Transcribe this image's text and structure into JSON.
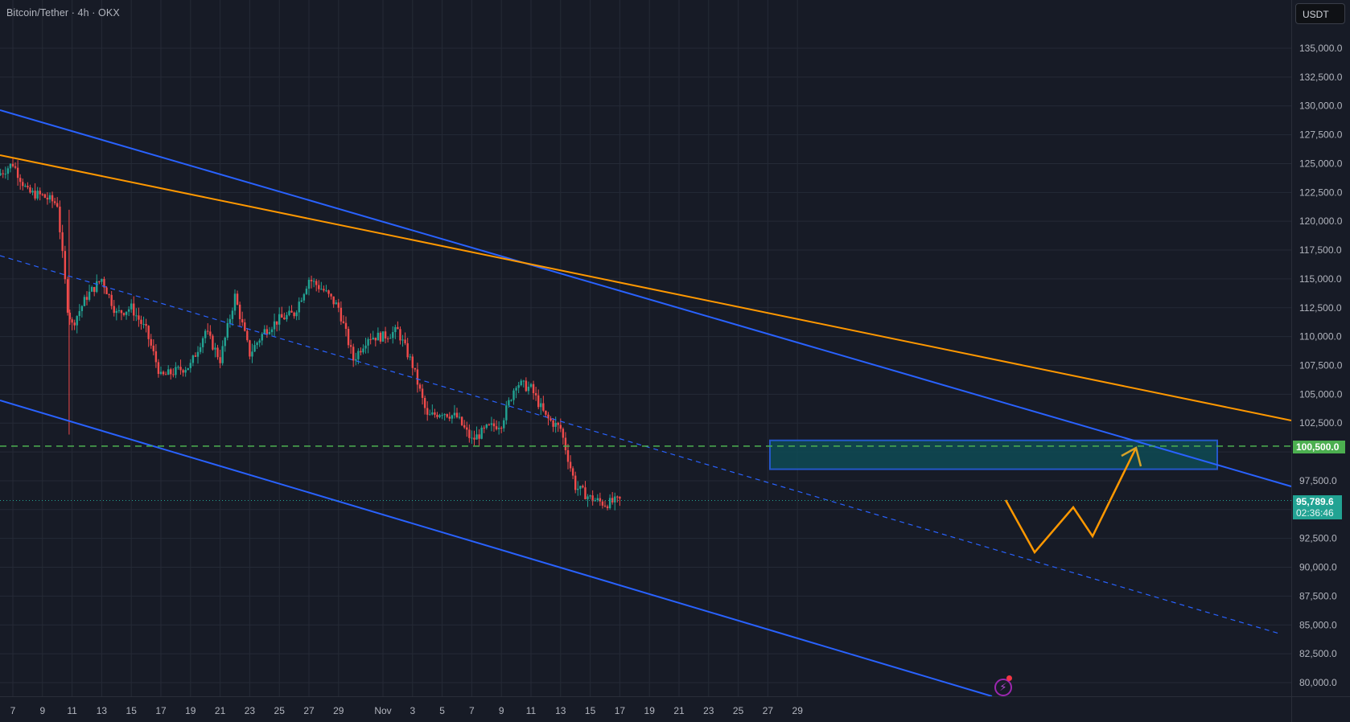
{
  "header": {
    "title": "Bitcoin/Tether · 4h · OKX"
  },
  "price_axis": {
    "currency_button": "USDT",
    "ticks": [
      "135,000.0",
      "132,500.0",
      "130,000.0",
      "127,500.0",
      "125,000.0",
      "122,500.0",
      "120,000.0",
      "117,500.0",
      "115,000.0",
      "112,500.0",
      "110,000.0",
      "107,500.0",
      "105,000.0",
      "102,500.0",
      "97,500.0",
      "92,500.0",
      "90,000.0",
      "87,500.0",
      "85,000.0",
      "82,500.0",
      "80,000.0"
    ],
    "level_badge": "100,500.0",
    "last_price": "95,789.6",
    "countdown": "02:36:46"
  },
  "time_axis": {
    "ticks": [
      "7",
      "9",
      "11",
      "13",
      "15",
      "17",
      "19",
      "21",
      "23",
      "25",
      "27",
      "29",
      "Nov",
      "3",
      "5",
      "7",
      "9",
      "11",
      "13",
      "15",
      "17",
      "19",
      "21",
      "23",
      "25",
      "27",
      "29"
    ]
  },
  "colors": {
    "background": "#171b26",
    "grid": "#252a36",
    "up": "#22a393",
    "down": "#f04b4b",
    "channel": "#2962ff",
    "trendline": "#ff9800",
    "level": "#4caf50",
    "zone_fill": "#0e4a55",
    "last_price": "#22a393"
  },
  "chart_data": {
    "type": "candlestick",
    "title": "Bitcoin/Tether · 4h · OKX",
    "xlabel": "",
    "ylabel": "USDT",
    "ylim": [
      79000,
      137000
    ],
    "x_range": [
      "Oct 6",
      "Nov 29"
    ],
    "grid": true,
    "price_ticks": [
      80000,
      82500,
      85000,
      87500,
      90000,
      92500,
      95000,
      97500,
      100000,
      102500,
      105000,
      107500,
      110000,
      112500,
      115000,
      117500,
      120000,
      122500,
      125000,
      127500,
      130000,
      132500,
      135000
    ],
    "approx_close_path": [
      {
        "date": "Oct 6",
        "price": 124000
      },
      {
        "date": "Oct 7",
        "price": 125000
      },
      {
        "date": "Oct 8",
        "price": 122500
      },
      {
        "date": "Oct 9",
        "price": 122200
      },
      {
        "date": "Oct 10",
        "price": 121500
      },
      {
        "date": "Oct 10 late",
        "price": 112500
      },
      {
        "date": "Oct 11",
        "price": 111000
      },
      {
        "date": "Oct 12",
        "price": 113500
      },
      {
        "date": "Oct 13",
        "price": 115000
      },
      {
        "date": "Oct 14",
        "price": 112000
      },
      {
        "date": "Oct 15",
        "price": 112500
      },
      {
        "date": "Oct 16",
        "price": 110500
      },
      {
        "date": "Oct 17",
        "price": 106500
      },
      {
        "date": "Oct 18",
        "price": 107000
      },
      {
        "date": "Oct 19",
        "price": 107500
      },
      {
        "date": "Oct 20",
        "price": 110500
      },
      {
        "date": "Oct 21",
        "price": 108000
      },
      {
        "date": "Oct 22",
        "price": 113500
      },
      {
        "date": "Oct 23",
        "price": 108500
      },
      {
        "date": "Oct 24",
        "price": 110500
      },
      {
        "date": "Oct 25",
        "price": 111500
      },
      {
        "date": "Oct 26",
        "price": 112000
      },
      {
        "date": "Oct 27",
        "price": 115000
      },
      {
        "date": "Oct 28",
        "price": 114000
      },
      {
        "date": "Oct 29",
        "price": 112500
      },
      {
        "date": "Oct 30",
        "price": 108000
      },
      {
        "date": "Oct 31",
        "price": 110000
      },
      {
        "date": "Nov 1",
        "price": 110000
      },
      {
        "date": "Nov 2",
        "price": 110500
      },
      {
        "date": "Nov 3",
        "price": 107500
      },
      {
        "date": "Nov 4",
        "price": 103000
      },
      {
        "date": "Nov 5",
        "price": 103500
      },
      {
        "date": "Nov 6",
        "price": 103000
      },
      {
        "date": "Nov 7",
        "price": 101000
      },
      {
        "date": "Nov 8",
        "price": 102000
      },
      {
        "date": "Nov 9",
        "price": 102500
      },
      {
        "date": "Nov 10",
        "price": 106000
      },
      {
        "date": "Nov 11",
        "price": 105500
      },
      {
        "date": "Nov 12",
        "price": 103000
      },
      {
        "date": "Nov 13",
        "price": 102000
      },
      {
        "date": "Nov 14",
        "price": 97000
      },
      {
        "date": "Nov 15",
        "price": 96000
      },
      {
        "date": "Nov 16",
        "price": 95500
      },
      {
        "date": "Nov 17",
        "price": 95789.6
      }
    ],
    "annotations": {
      "horizontal_level": {
        "price": 100500,
        "style": "dashed",
        "color": "#4caf50"
      },
      "zone": {
        "from_date": "Nov 7",
        "to_date": "Nov 26",
        "price_top": 101000,
        "price_bottom": 98500
      },
      "upper_channel_line": [
        {
          "date": "Oct 6",
          "price": 130000
        },
        {
          "date": "Nov 29",
          "price": 97500
        }
      ],
      "lower_channel_line": [
        {
          "date": "Oct 6",
          "price": 104500
        },
        {
          "date": "Nov 17",
          "price": 79000
        }
      ],
      "channel_midline_dashed": [
        {
          "date": "Oct 6",
          "price": 117000
        },
        {
          "date": "Nov 29",
          "price": 84200
        }
      ],
      "orange_trendline": [
        {
          "date": "Oct 6",
          "price": 126000
        },
        {
          "date": "Nov 29",
          "price": 102700
        }
      ],
      "projection_path": [
        {
          "date": "Nov 17",
          "price": 95789.6
        },
        {
          "date": "Nov 18.5",
          "price": 91200
        },
        {
          "date": "Nov 20",
          "price": 94500
        },
        {
          "date": "Nov 21",
          "price": 92700
        },
        {
          "date": "Nov 23",
          "price": 100500
        }
      ]
    },
    "last_price": 95789.6,
    "countdown": "02:36:46"
  }
}
